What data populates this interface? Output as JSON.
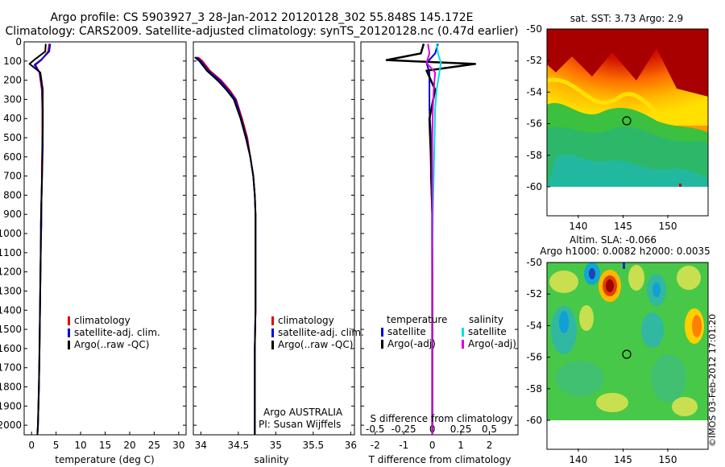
{
  "header": {
    "line1": "Argo profile: CS 5903927_3 28-Jan-2012 20120128_302 55.848S 145.172E",
    "line2": "Climatology: CARS2009. Satellite-adjusted climatology: synTS_20120128.nc (0.47d earlier)"
  },
  "depth_ticks": [
    "0",
    "100",
    "200",
    "300",
    "400",
    "500",
    "600",
    "700",
    "800",
    "900",
    "1000",
    "1100",
    "1200",
    "1300",
    "1400",
    "1500",
    "1600",
    "1700",
    "1800",
    "1900",
    "2000"
  ],
  "colors": {
    "climatology": "#e00000",
    "satellite": "#0000e0",
    "argo": "#000000",
    "cyan": "#00e0e0",
    "magenta": "#e000e0"
  },
  "panel_temp": {
    "xlabel": "temperature (deg C)",
    "xticks": [
      "0",
      "5",
      "10",
      "15",
      "20",
      "25",
      "30"
    ],
    "legend": [
      "climatology",
      "satellite-adj. clim.",
      "Argo(..raw -QC)"
    ]
  },
  "panel_sal": {
    "xlabel": "salinity",
    "xticks": [
      "34",
      "34.5",
      "35",
      "35.5",
      "36"
    ],
    "legend": [
      "climatology",
      "satellite-adj. clim.",
      "Argo(..raw -QC)"
    ],
    "note1": "Argo AUSTRALIA",
    "note2": "PI: Susan Wijffels"
  },
  "panel_diff": {
    "xlabel_bottom": "T difference from climatology",
    "xlabel_top": "S difference from climatology",
    "xticks_bottom": [
      "-2",
      "-1",
      "0",
      "1",
      "2"
    ],
    "xticks_top": [
      "-0.5",
      "-0.25",
      "0",
      "0.25",
      "0.5"
    ],
    "legend_temp_title": "temperature",
    "legend_sal_title": "salinity",
    "legend_temp": [
      "satellite",
      "Argo(-adj)"
    ],
    "legend_sal": [
      "satellite",
      "Argo(-adj)"
    ]
  },
  "map_sst": {
    "title": "sat. SST: 3.73 Argo: 2.9",
    "yticks": [
      "-50",
      "-52",
      "-54",
      "-56",
      "-58",
      "-60"
    ],
    "xticks": [
      "140",
      "145",
      "150"
    ]
  },
  "map_sla": {
    "title1": "Altim. SLA: -0.066",
    "title2": "Argo h1000: 0.0082 h2000: 0.0035",
    "yticks": [
      "-50",
      "-52",
      "-54",
      "-56",
      "-58",
      "-60"
    ],
    "xticks": [
      "140",
      "145",
      "150"
    ]
  },
  "credit": "©IMOS 03-Feb-2012 17:01:20",
  "chart_data": [
    {
      "type": "line",
      "xlabel": "temperature (deg C)",
      "ylabel": "",
      "xlim": [
        -1.5,
        31.5
      ],
      "ylim": [
        2050,
        0
      ],
      "series": [
        {
          "name": "climatology",
          "x": [
            3.6,
            3.4,
            2.0,
            0.8,
            1.6,
            2.1,
            2.2,
            2.2,
            2.2,
            2.1,
            2.1,
            2.0,
            2.0,
            1.9,
            1.8,
            1.7,
            1.6,
            1.5,
            1.4,
            1.3,
            1.2
          ],
          "y": [
            10,
            50,
            95,
            120,
            160,
            250,
            350,
            450,
            550,
            650,
            750,
            850,
            950,
            1050,
            1250,
            1450,
            1650,
            1800,
            1900,
            2000,
            2050
          ]
        },
        {
          "name": "satellite-adj. clim.",
          "x": [
            3.8,
            3.6,
            1.9,
            0.6,
            1.7,
            2.2,
            2.3,
            2.3,
            2.3,
            2.2,
            2.1,
            2.0,
            2.0,
            1.9,
            1.8,
            1.7,
            1.6,
            1.5,
            1.4,
            1.3,
            1.2
          ],
          "y": [
            10,
            50,
            95,
            120,
            160,
            250,
            350,
            450,
            550,
            650,
            750,
            850,
            950,
            1050,
            1250,
            1450,
            1650,
            1800,
            1900,
            2000,
            2050
          ]
        },
        {
          "name": "Argo(..raw -QC)",
          "x": [
            2.9,
            2.8,
            0.5,
            -0.4,
            1.8,
            2.3,
            2.3,
            2.3,
            2.2,
            2.2,
            2.1,
            2.0,
            1.9,
            1.9,
            1.8,
            1.7,
            1.6,
            1.5,
            1.4,
            1.3,
            1.2
          ],
          "y": [
            10,
            50,
            95,
            115,
            160,
            250,
            350,
            450,
            550,
            650,
            750,
            850,
            950,
            1050,
            1250,
            1450,
            1650,
            1800,
            1900,
            2000,
            2050
          ]
        }
      ]
    },
    {
      "type": "line",
      "xlabel": "salinity",
      "ylabel": "",
      "xlim": [
        33.9,
        36.05
      ],
      "ylim": [
        2050,
        0
      ],
      "series": [
        {
          "name": "climatology",
          "x": [
            33.96,
            34.02,
            34.12,
            34.27,
            34.38,
            34.47,
            34.55,
            34.62,
            34.66,
            34.7,
            34.72,
            34.73,
            34.73,
            34.73,
            34.73,
            34.72,
            34.72,
            34.72
          ],
          "y": [
            80,
            100,
            150,
            200,
            250,
            300,
            400,
            500,
            600,
            700,
            800,
            900,
            1000,
            1200,
            1400,
            1600,
            1800,
            2050
          ]
        },
        {
          "name": "satellite-adj. clim.",
          "x": [
            33.94,
            34.0,
            34.1,
            34.25,
            34.36,
            34.46,
            34.54,
            34.61,
            34.66,
            34.7,
            34.72,
            34.73,
            34.73,
            34.73,
            34.73,
            34.72,
            34.72,
            34.72
          ],
          "y": [
            80,
            100,
            150,
            200,
            250,
            300,
            400,
            500,
            600,
            700,
            800,
            900,
            1000,
            1200,
            1400,
            1600,
            1800,
            2050
          ]
        },
        {
          "name": "Argo(..raw -QC)",
          "x": [
            33.92,
            33.98,
            34.08,
            34.22,
            34.34,
            34.44,
            34.53,
            34.6,
            34.66,
            34.7,
            34.72,
            34.73,
            34.73,
            34.73,
            34.73,
            34.72,
            34.72,
            34.72
          ],
          "y": [
            80,
            100,
            150,
            200,
            250,
            300,
            400,
            500,
            600,
            700,
            800,
            900,
            1000,
            1200,
            1400,
            1600,
            1800,
            2050
          ]
        }
      ]
    },
    {
      "type": "line",
      "xlabel": "T difference from climatology",
      "ylabel": "",
      "xlim": [
        -2.5,
        3.0
      ],
      "ylim": [
        2050,
        0
      ],
      "series": [
        {
          "name": "temperature satellite",
          "x": [
            0.2,
            0.1,
            -0.2,
            -0.1,
            -0.1,
            -0.1,
            -0.05,
            -0.05,
            0,
            0,
            0,
            0
          ],
          "y": [
            10,
            60,
            110,
            160,
            250,
            350,
            500,
            700,
            900,
            1200,
            1600,
            2050
          ]
        },
        {
          "name": "temperature Argo(-adj)",
          "x": [
            -0.3,
            -0.4,
            -1.6,
            1.5,
            -0.2,
            0.1,
            -0.1,
            -0.05,
            0,
            0,
            0,
            0
          ],
          "y": [
            10,
            60,
            95,
            115,
            150,
            250,
            400,
            600,
            900,
            1200,
            1600,
            2050
          ]
        },
        {
          "name": "salinity satellite",
          "x": [
            0.15,
            0.2,
            0.3,
            0.25,
            0.15,
            0.1,
            0.08,
            0.05,
            0.02,
            0,
            0,
            0
          ],
          "y": [
            10,
            60,
            110,
            160,
            250,
            350,
            500,
            700,
            900,
            1200,
            1600,
            2050
          ]
        },
        {
          "name": "salinity Argo(-adj)",
          "x": [
            -0.15,
            -0.1,
            -0.2,
            0.1,
            0.05,
            0.02,
            0,
            0,
            0,
            0,
            0,
            0
          ],
          "y": [
            10,
            60,
            110,
            160,
            250,
            350,
            500,
            700,
            900,
            1200,
            1600,
            2050
          ]
        }
      ]
    }
  ]
}
